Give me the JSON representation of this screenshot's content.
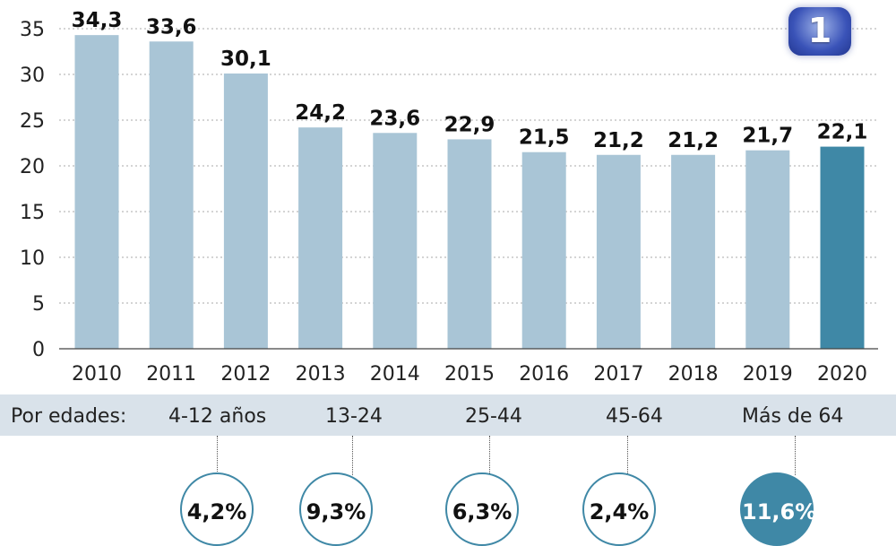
{
  "chart_data": {
    "type": "bar",
    "title": "",
    "xlabel": "",
    "ylabel": "",
    "ylim": [
      0,
      35
    ],
    "yticks": [
      0,
      5,
      10,
      15,
      20,
      25,
      30,
      35
    ],
    "categories": [
      "2010",
      "2011",
      "2012",
      "2013",
      "2014",
      "2015",
      "2016",
      "2017",
      "2018",
      "2019",
      "2020"
    ],
    "values": [
      34.3,
      33.6,
      30.1,
      24.2,
      23.6,
      22.9,
      21.5,
      21.2,
      21.2,
      21.7,
      22.1
    ],
    "value_labels": [
      "34,3",
      "33,6",
      "30,1",
      "24,2",
      "23,6",
      "22,9",
      "21,5",
      "21,2",
      "21,2",
      "21,7",
      "22,1"
    ],
    "highlight_index": 10,
    "grid": true,
    "colors": {
      "bar": "#a9c5d6",
      "highlight": "#3f88a6"
    }
  },
  "ages": {
    "label": "Por edades:",
    "groups": [
      {
        "label": "4-12 años",
        "value": "4,2%"
      },
      {
        "label": "13-24",
        "value": "9,3%"
      },
      {
        "label": "25-44",
        "value": "6,3%"
      },
      {
        "label": "45-64",
        "value": "2,4%"
      },
      {
        "label": "Más de 64",
        "value": "11,6%"
      }
    ]
  },
  "logo": {
    "text": "1"
  }
}
